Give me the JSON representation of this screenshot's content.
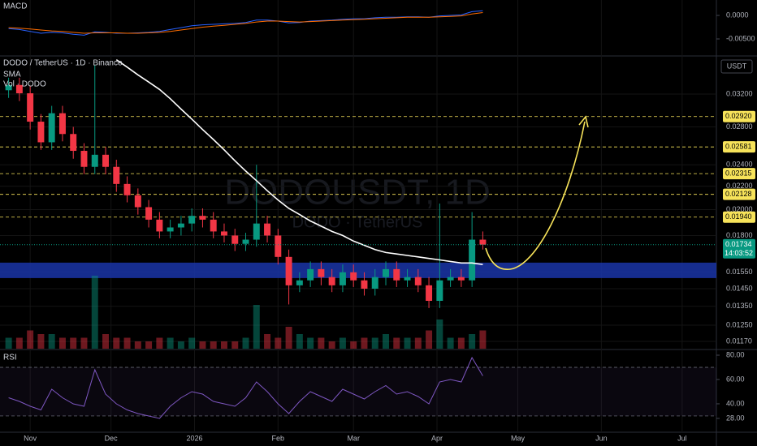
{
  "chart_data": {
    "type": "candlestick",
    "title": "DODO / TetherUS · 1D · Binance",
    "sma_name": "SMA",
    "volume_name": "Vol · DODO",
    "currency": "USDT",
    "watermark": "DODOUSDT, 1D",
    "watermark_sub": "DODO · TetherUS",
    "log_scale": true,
    "up_color": "#089981",
    "down_color": "#f23645",
    "sma_color": "#ffffff",
    "x": [
      -8,
      -4,
      0,
      4,
      8,
      12,
      16,
      20,
      24,
      28,
      32,
      36,
      40,
      44,
      48,
      52,
      56,
      60,
      64,
      68,
      72,
      76,
      80,
      84,
      88,
      92,
      96,
      100,
      104,
      108,
      112,
      116,
      120,
      124,
      128,
      132,
      136,
      140,
      144,
      148,
      152,
      156,
      160,
      164,
      168
    ],
    "open": [
      0.0325,
      0.0332,
      0.0321,
      0.0286,
      0.0263,
      0.0296,
      0.0272,
      0.0254,
      0.0238,
      0.025,
      0.0238,
      0.0222,
      0.0212,
      0.0202,
      0.0192,
      0.0183,
      0.0186,
      0.0189,
      0.0195,
      0.0192,
      0.0183,
      0.018,
      0.0174,
      0.0177,
      0.0189,
      0.018,
      0.0165,
      0.0147,
      0.015,
      0.0157,
      0.0152,
      0.0147,
      0.0155,
      0.015,
      0.0145,
      0.0152,
      0.0157,
      0.015,
      0.0152,
      0.0147,
      0.0138,
      0.015,
      0.0152,
      0.015,
      0.0177
    ],
    "high": [
      0.0342,
      0.0342,
      0.0331,
      0.0295,
      0.0305,
      0.0305,
      0.028,
      0.0262,
      0.036,
      0.0258,
      0.0245,
      0.0229,
      0.0218,
      0.0208,
      0.0198,
      0.0192,
      0.0195,
      0.0201,
      0.0201,
      0.0198,
      0.0189,
      0.0185,
      0.0182,
      0.024,
      0.0195,
      0.0185,
      0.017,
      0.0155,
      0.0162,
      0.0162,
      0.0157,
      0.016,
      0.016,
      0.0155,
      0.0157,
      0.0162,
      0.0162,
      0.0157,
      0.0157,
      0.0152,
      0.0205,
      0.0157,
      0.0157,
      0.0198,
      0.0183
    ],
    "low": [
      0.0315,
      0.0311,
      0.0277,
      0.0255,
      0.0255,
      0.0264,
      0.0246,
      0.0231,
      0.0231,
      0.0231,
      0.0215,
      0.0206,
      0.0196,
      0.0186,
      0.0178,
      0.0178,
      0.018,
      0.0183,
      0.0186,
      0.0178,
      0.0175,
      0.0169,
      0.0169,
      0.0172,
      0.0175,
      0.016,
      0.0136,
      0.0143,
      0.0146,
      0.0147,
      0.0143,
      0.0143,
      0.0146,
      0.0141,
      0.0141,
      0.0147,
      0.0146,
      0.0146,
      0.0143,
      0.0134,
      0.0134,
      0.0146,
      0.0146,
      0.0146,
      0.017
    ],
    "close": [
      0.0332,
      0.0321,
      0.0286,
      0.0263,
      0.0296,
      0.0272,
      0.0254,
      0.0238,
      0.025,
      0.0238,
      0.0222,
      0.0212,
      0.0202,
      0.0192,
      0.0183,
      0.0186,
      0.0189,
      0.0195,
      0.0192,
      0.0183,
      0.018,
      0.0174,
      0.0177,
      0.0189,
      0.018,
      0.0165,
      0.0147,
      0.015,
      0.0157,
      0.0152,
      0.0147,
      0.0155,
      0.015,
      0.0145,
      0.0152,
      0.0157,
      0.015,
      0.0152,
      0.0147,
      0.0138,
      0.015,
      0.0152,
      0.015,
      0.0177,
      0.01734
    ],
    "sma": [
      null,
      null,
      null,
      null,
      null,
      null,
      null,
      null,
      null,
      null,
      0.0368,
      0.0357,
      0.0346,
      0.0336,
      0.0326,
      0.0314,
      0.0301,
      0.0289,
      0.0277,
      0.0266,
      0.0255,
      0.0244,
      0.0234,
      0.0225,
      0.0216,
      0.0208,
      0.0201,
      0.0196,
      0.0191,
      0.0187,
      0.0183,
      0.018,
      0.0176,
      0.0173,
      0.017,
      0.0168,
      0.0167,
      0.0166,
      0.0165,
      0.0164,
      0.0163,
      0.0162,
      0.0161,
      0.0161,
      0.016
    ],
    "volume": [
      3,
      3,
      5,
      4,
      4,
      3,
      3,
      3,
      20,
      4,
      3,
      3,
      2,
      2,
      3,
      3,
      2,
      3,
      2,
      2,
      2,
      2,
      3,
      12,
      4,
      3,
      6,
      4,
      3,
      3,
      2,
      3,
      2,
      3,
      3,
      4,
      3,
      3,
      3,
      5,
      8,
      3,
      3,
      4,
      5
    ],
    "xlim": [
      -11.2,
      254.7
    ],
    "xticks": [
      {
        "value": 0,
        "label": "Nov"
      },
      {
        "value": 30,
        "label": "Dec"
      },
      {
        "value": 61,
        "label": "2026"
      },
      {
        "value": 92,
        "label": "Feb"
      },
      {
        "value": 120,
        "label": "Mar"
      },
      {
        "value": 151,
        "label": "Apr"
      },
      {
        "value": 181,
        "label": "May"
      },
      {
        "value": 212,
        "label": "Jun"
      },
      {
        "value": 242,
        "label": "Jul"
      }
    ],
    "ylim": [
      0.01136,
      0.03724
    ],
    "yticks": [
      {
        "value": 0.032,
        "label": "0.03200"
      },
      {
        "value": 0.028,
        "label": "0.02800"
      },
      {
        "value": 0.024,
        "label": "0.02400"
      },
      {
        "value": 0.022,
        "label": "0.02200"
      },
      {
        "value": 0.02,
        "label": "0.02000"
      },
      {
        "value": 0.018,
        "label": "0.01800"
      },
      {
        "value": 0.0155,
        "label": "0.01550"
      },
      {
        "value": 0.0145,
        "label": "0.01450"
      },
      {
        "value": 0.0135,
        "label": "0.01350"
      },
      {
        "value": 0.0125,
        "label": "0.01250"
      },
      {
        "value": 0.0117,
        "label": "0.01170"
      }
    ],
    "levels": {
      "values": [
        0.0292,
        0.02581,
        0.02315,
        0.02128,
        0.0194
      ],
      "value_labels": [
        "0.02920",
        "0.02581",
        "0.02315",
        "0.02128",
        "0.01940"
      ],
      "color": "#f7e35a"
    },
    "zone": {
      "values": [
        0.01514,
        0.01612
      ],
      "color": "#1a35a8"
    },
    "price_tag": {
      "value": 0.01734,
      "label": "0.01734",
      "countdown": "14:03:52",
      "color": "#089981"
    },
    "macd": {
      "title": "MACD",
      "ylim": [
        -0.00845,
        0.00328
      ],
      "yticks": [
        {
          "value": 0,
          "label": "0.0000"
        },
        {
          "value": -0.005,
          "label": "-0.00500"
        }
      ],
      "series": [
        {
          "color": "#2962ff",
          "values": [
            -0.0028,
            -0.003,
            -0.0034,
            -0.0038,
            -0.0036,
            -0.0037,
            -0.004,
            -0.0042,
            -0.0035,
            -0.0036,
            -0.0038,
            -0.0038,
            -0.0037,
            -0.0036,
            -0.0034,
            -0.003,
            -0.0026,
            -0.0022,
            -0.002,
            -0.0019,
            -0.0018,
            -0.0017,
            -0.0015,
            -0.001,
            -0.001,
            -0.0012,
            -0.0016,
            -0.0015,
            -0.0012,
            -0.0011,
            -0.001,
            -0.0008,
            -0.0007,
            -0.0007,
            -0.0005,
            -0.0004,
            -0.0004,
            -0.0003,
            -0.0003,
            -0.0004,
            -0.0001,
            0,
            0.0001,
            0.0008,
            0.001
          ]
        },
        {
          "color": "#ff6d00",
          "values": [
            -0.0026,
            -0.0027,
            -0.0029,
            -0.0031,
            -0.0033,
            -0.0034,
            -0.0036,
            -0.0038,
            -0.0037,
            -0.0037,
            -0.0037,
            -0.0038,
            -0.0038,
            -0.0037,
            -0.0036,
            -0.0034,
            -0.0031,
            -0.0028,
            -0.0025,
            -0.0023,
            -0.0021,
            -0.0019,
            -0.0017,
            -0.0014,
            -0.0012,
            -0.0012,
            -0.0013,
            -0.0014,
            -0.0013,
            -0.0012,
            -0.0011,
            -0.001,
            -0.0009,
            -0.0008,
            -0.0007,
            -0.0006,
            -0.0005,
            -0.0004,
            -0.0004,
            -0.0004,
            -0.0003,
            -0.0002,
            -0.0001,
            0.0003,
            0.0006
          ]
        }
      ]
    },
    "rsi": {
      "title": "RSI",
      "color": "#7e57c2",
      "ylim": [
        17.3,
        84
      ],
      "yticks": [
        {
          "value": 80,
          "label": "80.00"
        },
        {
          "value": 60,
          "label": "60.00"
        },
        {
          "value": 40,
          "label": "40.00"
        },
        {
          "value": 28,
          "label": "28.00"
        }
      ],
      "bands": [
        70,
        30
      ],
      "values": [
        45,
        42,
        38,
        35,
        52,
        45,
        40,
        38,
        68,
        48,
        40,
        35,
        32,
        30,
        28,
        38,
        45,
        50,
        48,
        42,
        40,
        38,
        45,
        58,
        50,
        40,
        32,
        42,
        50,
        46,
        42,
        52,
        48,
        44,
        50,
        55,
        48,
        50,
        46,
        40,
        58,
        60,
        58,
        78,
        63
      ]
    }
  }
}
